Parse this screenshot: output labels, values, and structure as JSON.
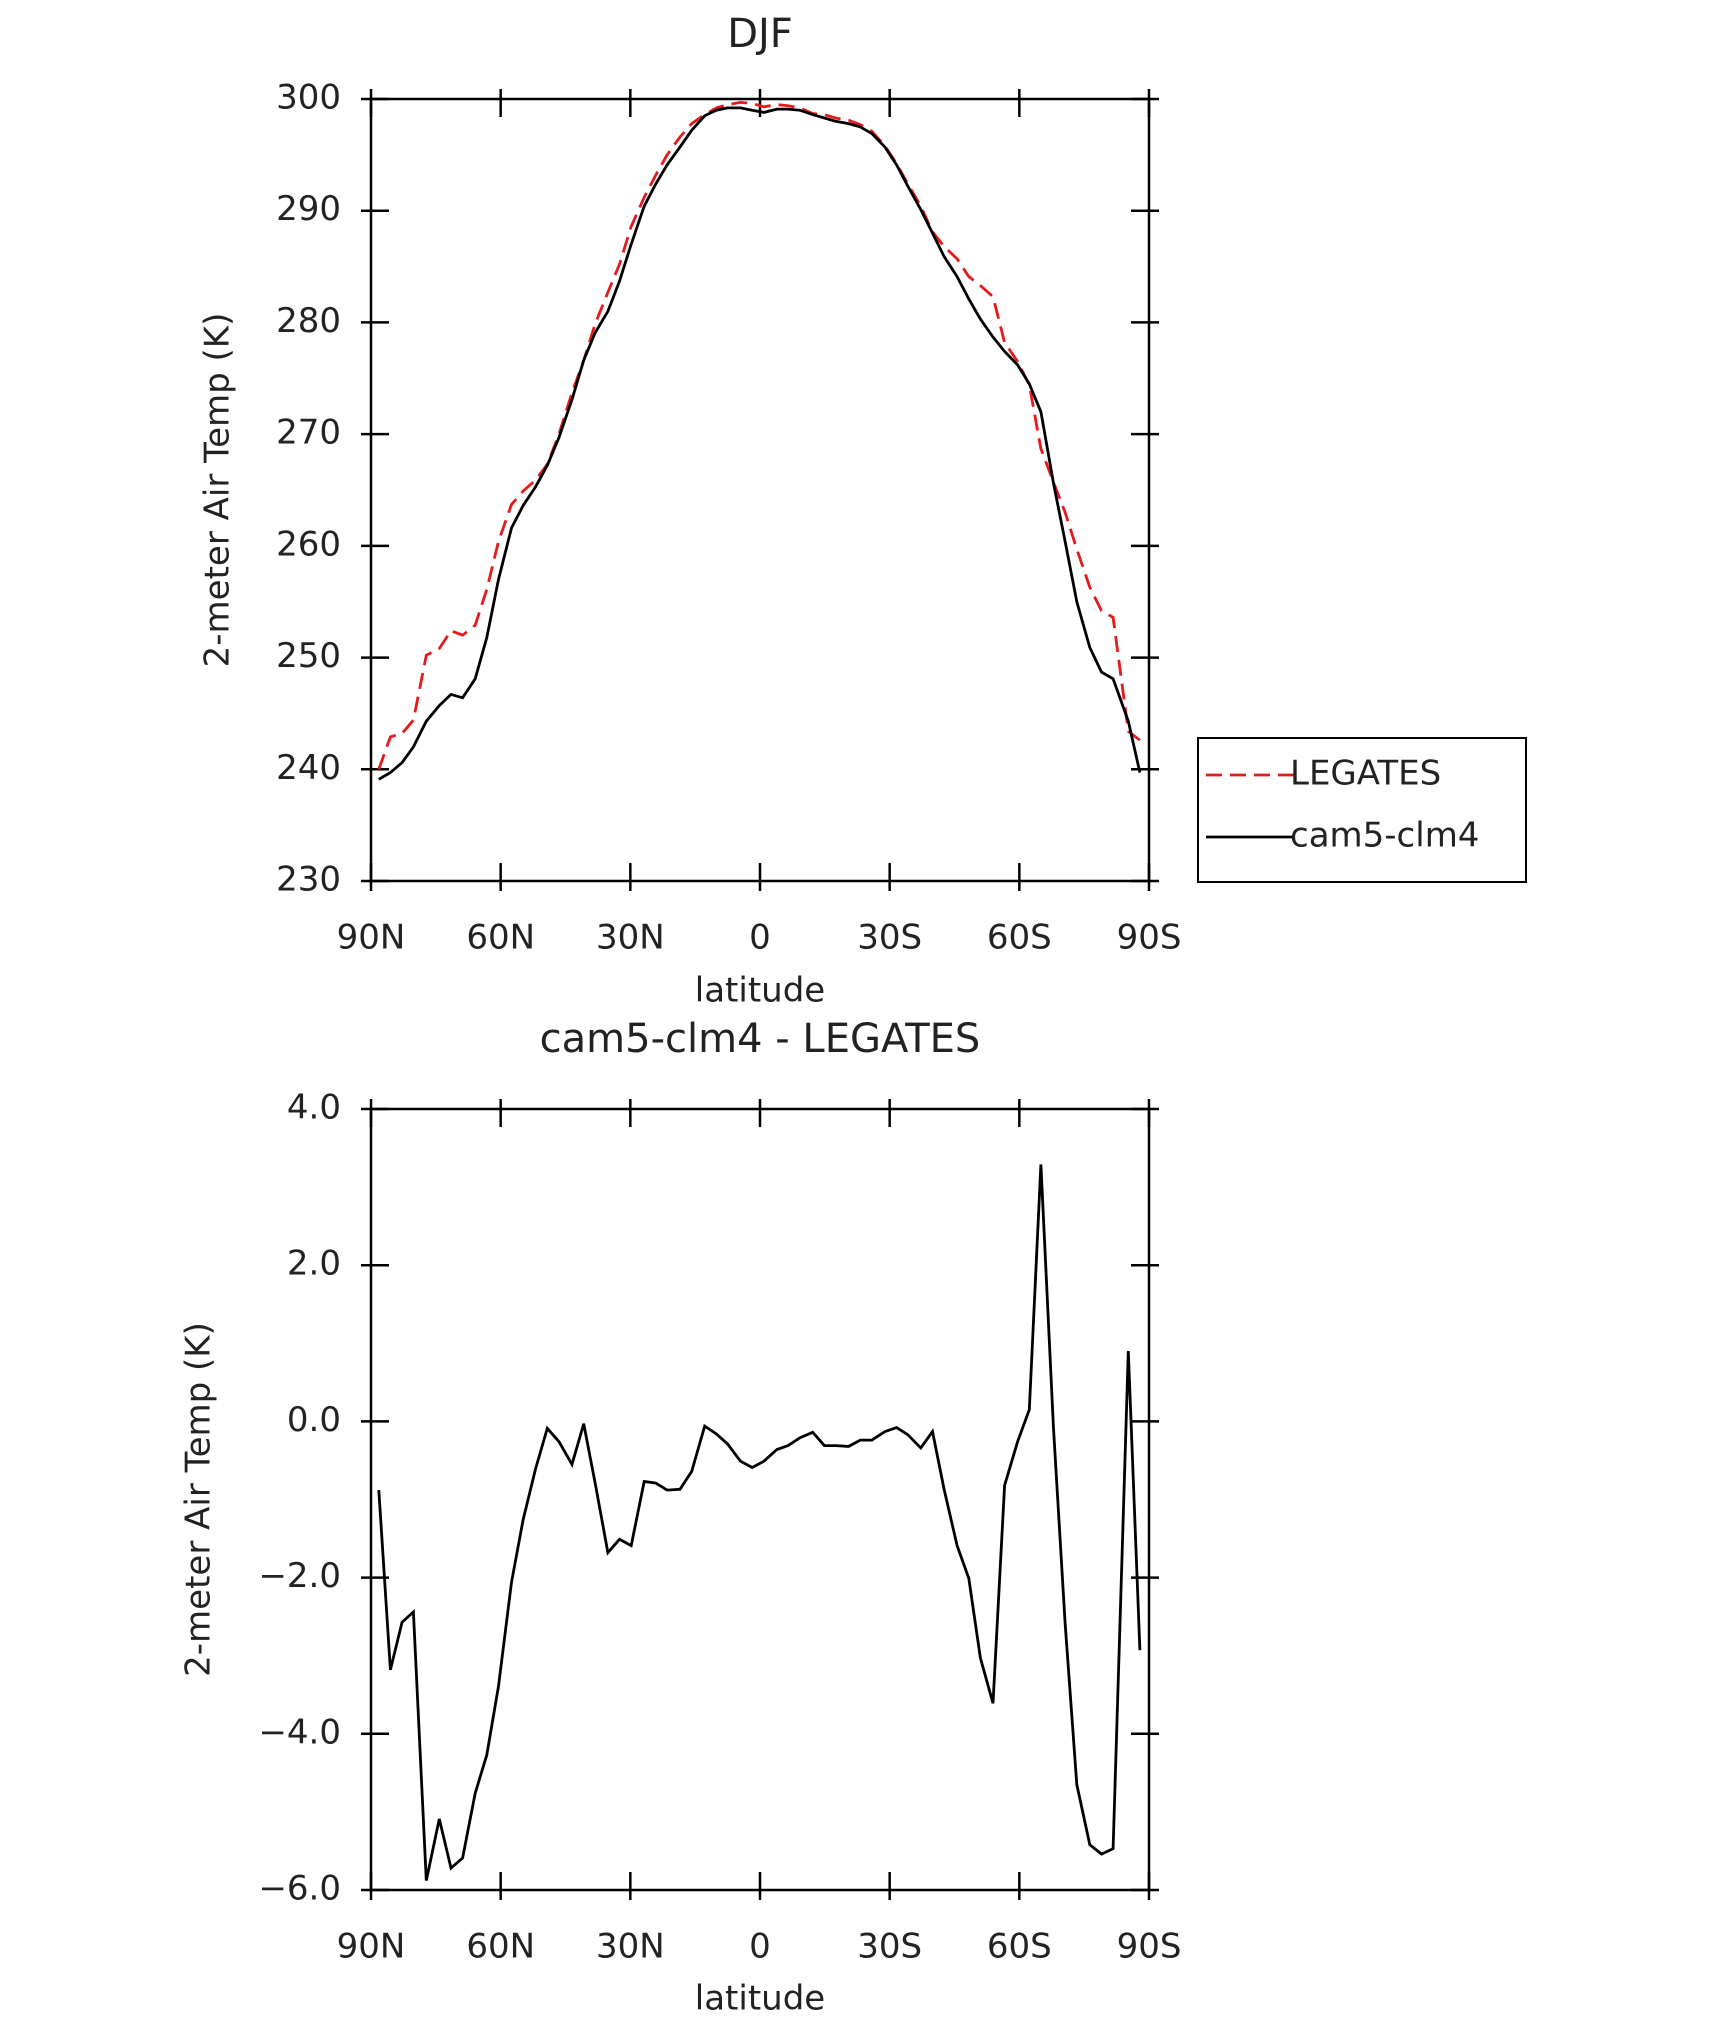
{
  "chart_data": [
    {
      "type": "line",
      "title": "DJF",
      "x_label": "latitude",
      "y_label": "2-meter Air Temp (K)",
      "x": [
        88.2,
        85.5,
        82.8,
        80.2,
        77.2,
        74.2,
        71.5,
        68.8,
        65.9,
        63.2,
        60.5,
        57.5,
        54.8,
        51.9,
        49.2,
        46.5,
        43.5,
        40.8,
        38.1,
        35.2,
        32.5,
        29.8,
        26.8,
        24.1,
        21.5,
        18.5,
        15.8,
        12.8,
        10.1,
        7.5,
        4.5,
        1.8,
        -0.9,
        -3.9,
        -6.5,
        -9.2,
        -12.2,
        -14.9,
        -17.5,
        -20.5,
        -23.2,
        -25.9,
        -28.9,
        -31.6,
        -34.2,
        -37.2,
        -39.9,
        -42.6,
        -45.6,
        -48.3,
        -51.0,
        -53.9,
        -56.6,
        -59.6,
        -62.3,
        -65.0,
        -67.9,
        -70.6,
        -73.3,
        -76.3,
        -79.0,
        -81.7,
        -85.2,
        -87.9
      ],
      "series": [
        {
          "name": "LEGATES",
          "color": "#e41a1c",
          "line_style": "dashed",
          "values": [
            240.0,
            242.9,
            243.2,
            244.4,
            250.2,
            250.8,
            252.4,
            252.0,
            252.9,
            256.1,
            260.4,
            263.7,
            264.9,
            265.9,
            267.3,
            270.0,
            273.7,
            276.6,
            279.9,
            282.7,
            285.2,
            288.6,
            291.2,
            293.2,
            295.0,
            296.6,
            297.8,
            298.6,
            299.2,
            299.5,
            299.7,
            299.6,
            299.3,
            299.5,
            299.4,
            299.2,
            298.7,
            298.6,
            298.3,
            298.1,
            297.7,
            297.1,
            295.8,
            294.2,
            292.4,
            290.4,
            288.1,
            286.8,
            285.7,
            284.1,
            283.3,
            282.3,
            278.2,
            276.5,
            274.4,
            268.7,
            265.7,
            263.0,
            259.7,
            256.3,
            254.2,
            253.6,
            243.4,
            242.6
          ]
        },
        {
          "name": "cam5-clm4",
          "color": "#000000",
          "line_style": "solid",
          "values": [
            239.1,
            239.7,
            240.6,
            242.0,
            244.3,
            245.7,
            246.7,
            246.4,
            248.1,
            251.8,
            257.0,
            261.6,
            263.6,
            265.3,
            267.2,
            269.7,
            273.1,
            276.6,
            279.1,
            281.0,
            283.7,
            287.0,
            290.4,
            292.4,
            294.1,
            295.7,
            297.2,
            298.5,
            299.0,
            299.2,
            299.2,
            299.0,
            298.8,
            299.1,
            299.1,
            299.0,
            298.6,
            298.3,
            298.0,
            297.8,
            297.5,
            296.9,
            295.7,
            294.1,
            292.2,
            290.1,
            288.0,
            285.9,
            284.1,
            282.1,
            280.3,
            278.7,
            277.4,
            276.2,
            274.5,
            272.0,
            265.6,
            260.4,
            255.0,
            250.9,
            248.7,
            248.1,
            244.3,
            239.7
          ]
        }
      ],
      "xlim": [
        90,
        -90
      ],
      "xticks": [
        {
          "value": 90,
          "label": "90N"
        },
        {
          "value": 60,
          "label": "60N"
        },
        {
          "value": 30,
          "label": "30N"
        },
        0,
        {
          "value": -30,
          "label": "30S"
        },
        {
          "value": -60,
          "label": "60S"
        },
        {
          "value": -90,
          "label": "90S"
        }
      ],
      "ylim": [
        230,
        300
      ],
      "yticks": [
        230,
        240,
        250,
        260,
        270,
        280,
        290,
        300
      ],
      "legend": "right"
    },
    {
      "type": "line",
      "title": "cam5-clm4 - LEGATES",
      "x_label": "latitude",
      "y_label": "2-meter Air Temp (K)",
      "x": [
        88.2,
        85.5,
        82.8,
        80.2,
        77.2,
        74.2,
        71.5,
        68.8,
        65.9,
        63.2,
        60.5,
        57.5,
        54.8,
        51.9,
        49.2,
        46.5,
        43.5,
        40.8,
        38.1,
        35.2,
        32.5,
        29.8,
        26.8,
        24.1,
        21.5,
        18.5,
        15.8,
        12.8,
        10.1,
        7.5,
        4.5,
        1.8,
        -0.9,
        -3.9,
        -6.5,
        -9.2,
        -12.2,
        -14.9,
        -17.5,
        -20.5,
        -23.2,
        -25.9,
        -28.9,
        -31.6,
        -34.2,
        -37.2,
        -39.9,
        -42.6,
        -45.6,
        -48.3,
        -51.0,
        -53.9,
        -56.6,
        -59.6,
        -62.3,
        -65.0,
        -67.9,
        -70.6,
        -73.3,
        -76.3,
        -79.0,
        -81.7,
        -85.2,
        -87.9
      ],
      "series": [
        {
          "color": "#000000",
          "line_style": "solid",
          "values": [
            -0.88,
            -3.18,
            -2.57,
            -2.44,
            -5.88,
            -5.09,
            -5.72,
            -5.59,
            -4.76,
            -4.27,
            -3.39,
            -2.06,
            -1.26,
            -0.6,
            -0.09,
            -0.26,
            -0.55,
            -0.03,
            -0.8,
            -1.68,
            -1.51,
            -1.59,
            -0.77,
            -0.79,
            -0.88,
            -0.87,
            -0.64,
            -0.06,
            -0.16,
            -0.29,
            -0.51,
            -0.59,
            -0.51,
            -0.36,
            -0.31,
            -0.21,
            -0.14,
            -0.31,
            -0.31,
            -0.32,
            -0.24,
            -0.24,
            -0.13,
            -0.08,
            -0.17,
            -0.34,
            -0.13,
            -0.87,
            -1.59,
            -2.01,
            -3.03,
            -3.61,
            -0.82,
            -0.26,
            0.15,
            3.29,
            -0.09,
            -2.58,
            -4.65,
            -5.42,
            -5.54,
            -5.47,
            0.9,
            -2.93
          ]
        }
      ],
      "xlim": [
        90,
        -90
      ],
      "xticks": [
        {
          "value": 90,
          "label": "90N"
        },
        {
          "value": 60,
          "label": "60N"
        },
        {
          "value": 30,
          "label": "30N"
        },
        0,
        {
          "value": -30,
          "label": "30S"
        },
        {
          "value": -60,
          "label": "60S"
        },
        {
          "value": -90,
          "label": "90S"
        }
      ],
      "ylim": [
        -6,
        4
      ],
      "yticks": [
        {
          "value": -6,
          "label": "−6.0"
        },
        {
          "value": -4,
          "label": "−4.0"
        },
        {
          "value": -2,
          "label": "−2.0"
        },
        {
          "value": 0,
          "label": "0.0"
        },
        {
          "value": 2,
          "label": "2.0"
        },
        {
          "value": 4,
          "label": "4.0"
        }
      ]
    }
  ]
}
